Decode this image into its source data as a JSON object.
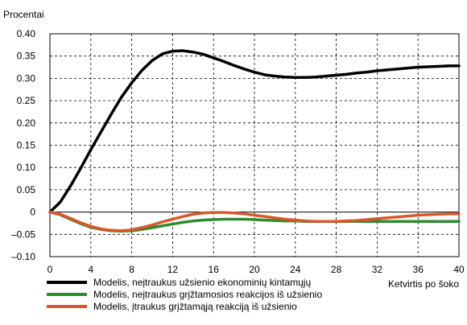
{
  "chart_data": {
    "type": "line",
    "ylabel": "Procentai",
    "xlabel": "Ketvirtis po šoko",
    "xlim": [
      0,
      40
    ],
    "ylim": [
      -0.1,
      0.4
    ],
    "x_ticks": [
      0,
      4,
      8,
      12,
      16,
      20,
      24,
      28,
      32,
      36,
      40
    ],
    "x_tick_labels": [
      "0",
      "4",
      "8",
      "12",
      "16",
      "20",
      "24",
      "28",
      "32",
      "36",
      "40"
    ],
    "y_ticks": [
      -0.1,
      -0.05,
      0,
      0.05,
      0.1,
      0.15,
      0.2,
      0.25,
      0.3,
      0.35,
      0.4
    ],
    "y_tick_labels": [
      "–0.10",
      "–0.05",
      "0",
      "0.05",
      "0.10",
      "0.15",
      "0.20",
      "0.25",
      "0.30",
      "0.35",
      "0.40"
    ],
    "grid": "dashed",
    "legend_placement": "bottom-left",
    "series": [
      {
        "name": "Modelis, neįtraukus užsienio ekonominių kintamųjų",
        "color": "#000000",
        "x": [
          0,
          1,
          2,
          3,
          4,
          5,
          6,
          7,
          8,
          9,
          10,
          11,
          12,
          13,
          14,
          15,
          16,
          17,
          18,
          19,
          20,
          21,
          22,
          23,
          24,
          25,
          26,
          27,
          28,
          29,
          30,
          31,
          32,
          33,
          34,
          35,
          36,
          37,
          38,
          39,
          40
        ],
        "values": [
          0.0,
          0.022,
          0.058,
          0.098,
          0.14,
          0.18,
          0.22,
          0.258,
          0.29,
          0.318,
          0.34,
          0.355,
          0.361,
          0.362,
          0.359,
          0.354,
          0.346,
          0.338,
          0.329,
          0.321,
          0.314,
          0.308,
          0.305,
          0.303,
          0.302,
          0.302,
          0.303,
          0.305,
          0.307,
          0.309,
          0.312,
          0.314,
          0.317,
          0.319,
          0.321,
          0.323,
          0.325,
          0.326,
          0.327,
          0.328,
          0.328
        ]
      },
      {
        "name": "Modelis, neįtraukus grįžtamosios reakcijos iš užsienio",
        "color": "#2e8b2e",
        "x": [
          0,
          1,
          2,
          3,
          4,
          5,
          6,
          7,
          8,
          9,
          10,
          11,
          12,
          13,
          14,
          15,
          16,
          17,
          18,
          19,
          20,
          21,
          22,
          23,
          24,
          25,
          26,
          27,
          28,
          29,
          30,
          31,
          32,
          33,
          34,
          35,
          36,
          37,
          38,
          39,
          40
        ],
        "values": [
          0.0,
          -0.006,
          -0.016,
          -0.026,
          -0.034,
          -0.039,
          -0.042,
          -0.043,
          -0.042,
          -0.039,
          -0.035,
          -0.031,
          -0.027,
          -0.023,
          -0.02,
          -0.018,
          -0.017,
          -0.016,
          -0.016,
          -0.016,
          -0.017,
          -0.018,
          -0.019,
          -0.02,
          -0.02,
          -0.021,
          -0.021,
          -0.021,
          -0.021,
          -0.021,
          -0.021,
          -0.021,
          -0.021,
          -0.021,
          -0.021,
          -0.021,
          -0.021,
          -0.021,
          -0.021,
          -0.021,
          -0.021
        ]
      },
      {
        "name": "Modelis, įtraukus grįžtamąją reakciją iš užsienio",
        "color": "#d9572a",
        "x": [
          0,
          1,
          2,
          3,
          4,
          5,
          6,
          7,
          8,
          9,
          10,
          11,
          12,
          13,
          14,
          15,
          16,
          17,
          18,
          19,
          20,
          21,
          22,
          23,
          24,
          25,
          26,
          27,
          28,
          29,
          30,
          31,
          32,
          33,
          34,
          35,
          36,
          37,
          38,
          39,
          40
        ],
        "values": [
          0.0,
          -0.005,
          -0.014,
          -0.024,
          -0.032,
          -0.038,
          -0.041,
          -0.042,
          -0.04,
          -0.035,
          -0.029,
          -0.022,
          -0.016,
          -0.01,
          -0.005,
          -0.002,
          -0.001,
          -0.001,
          -0.002,
          -0.004,
          -0.007,
          -0.01,
          -0.013,
          -0.016,
          -0.018,
          -0.02,
          -0.021,
          -0.021,
          -0.021,
          -0.02,
          -0.019,
          -0.017,
          -0.015,
          -0.013,
          -0.011,
          -0.009,
          -0.007,
          -0.006,
          -0.005,
          -0.004,
          -0.004
        ]
      }
    ]
  }
}
